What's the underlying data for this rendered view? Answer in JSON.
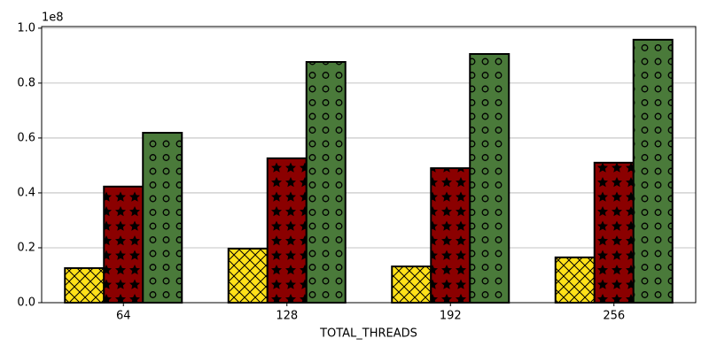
{
  "chart_data": {
    "type": "bar",
    "x_label": "TOTAL_THREADS",
    "y_offset_label": "1e8",
    "categories": [
      "64",
      "128",
      "192",
      "256"
    ],
    "series": [
      {
        "color": "#ffe119",
        "hatch": "x",
        "values": [
          0.126,
          0.197,
          0.132,
          0.165
        ]
      },
      {
        "color": "#8b0000",
        "hatch": "star",
        "values": [
          0.423,
          0.526,
          0.49,
          0.51
        ]
      },
      {
        "color": "#4a7a3a",
        "hatch": "circle",
        "values": [
          0.619,
          0.877,
          0.906,
          0.958
        ]
      }
    ],
    "ylim": [
      0,
      1.006
    ],
    "yticks": [
      {
        "value": 0,
        "label": "0.0"
      },
      0.2,
      0.4,
      0.6,
      0.8,
      {
        "value": 1,
        "label": "1.0"
      }
    ],
    "grid": true
  }
}
